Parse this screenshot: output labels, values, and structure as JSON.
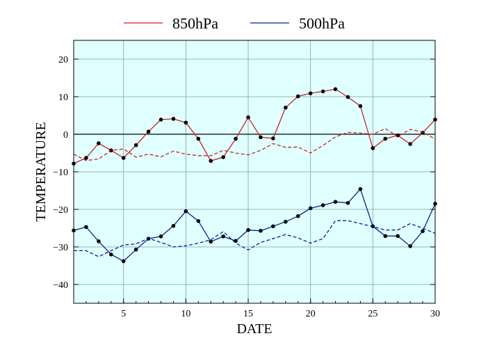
{
  "chart_data": {
    "type": "line",
    "title": "",
    "xlabel": "DATE",
    "ylabel": "TEMPERATURE",
    "xlim": [
      1,
      30
    ],
    "ylim": [
      -45,
      25
    ],
    "x_ticks": [
      5,
      10,
      15,
      20,
      25,
      30
    ],
    "y_ticks": [
      -40,
      -30,
      -20,
      -10,
      0,
      10,
      20
    ],
    "grid": true,
    "legend_position": "top",
    "plot_background": "#e0ffff",
    "reference_line_y": 0,
    "legend": [
      {
        "label": "850hPa",
        "color": "#cc2222"
      },
      {
        "label": "500hPa",
        "color": "#0a1f9a"
      }
    ],
    "x": [
      1,
      2,
      3,
      4,
      5,
      6,
      7,
      8,
      9,
      10,
      11,
      12,
      13,
      14,
      15,
      16,
      17,
      18,
      19,
      20,
      21,
      22,
      23,
      24,
      25,
      26,
      27,
      28,
      29,
      30
    ],
    "series": [
      {
        "name": "850hPa",
        "color": "#cc2222",
        "style": "solid",
        "markers": true,
        "values": [
          -7.8,
          -6.3,
          -2.4,
          -4.3,
          -6.3,
          -2.9,
          0.7,
          3.9,
          4.1,
          3.1,
          -1.2,
          -7.1,
          -6.1,
          -1.2,
          4.5,
          -0.8,
          -1.1,
          7.1,
          10.1,
          10.9,
          11.4,
          12.0,
          9.9,
          7.5,
          -3.7,
          -1.2,
          -0.3,
          -2.6,
          0.4,
          3.9
        ]
      },
      {
        "name": "",
        "color": "#cc2222",
        "style": "dashed",
        "markers": false,
        "values": [
          -5.3,
          -7.0,
          -6.6,
          -4.3,
          -3.9,
          -6.1,
          -5.3,
          -6.0,
          -4.5,
          -5.3,
          -5.7,
          -5.7,
          -4.3,
          -5.0,
          -5.5,
          -4.3,
          -2.5,
          -3.5,
          -3.4,
          -5.0,
          -3.0,
          -0.7,
          0.5,
          0.3,
          0.0,
          1.5,
          -0.6,
          1.3,
          0.6,
          -1.3
        ]
      },
      {
        "name": "500hPa",
        "color": "#0a1f9a",
        "style": "solid",
        "markers": true,
        "values": [
          -25.6,
          -24.7,
          -28.5,
          -32.0,
          -33.8,
          -30.7,
          -27.8,
          -27.2,
          -24.4,
          -20.5,
          -23.1,
          -28.6,
          -27.2,
          -28.4,
          -25.5,
          -25.7,
          -24.5,
          -23.3,
          -21.8,
          -19.7,
          -18.9,
          -18.0,
          -18.3,
          -14.6,
          -24.5,
          -27.1,
          -27.1,
          -29.8,
          -25.8,
          -18.5
        ]
      },
      {
        "name": "",
        "color": "#0a1f9a",
        "style": "dashed",
        "markers": false,
        "values": [
          -31.0,
          -31.0,
          -32.6,
          -31.0,
          -29.5,
          -29.2,
          -27.7,
          -28.8,
          -30.0,
          -29.7,
          -29.0,
          -28.1,
          -25.9,
          -29.0,
          -30.8,
          -28.8,
          -27.8,
          -26.7,
          -27.6,
          -29.0,
          -27.8,
          -23.0,
          -23.0,
          -23.8,
          -24.6,
          -25.5,
          -25.5,
          -23.8,
          -25.0,
          -26.4
        ]
      }
    ]
  }
}
